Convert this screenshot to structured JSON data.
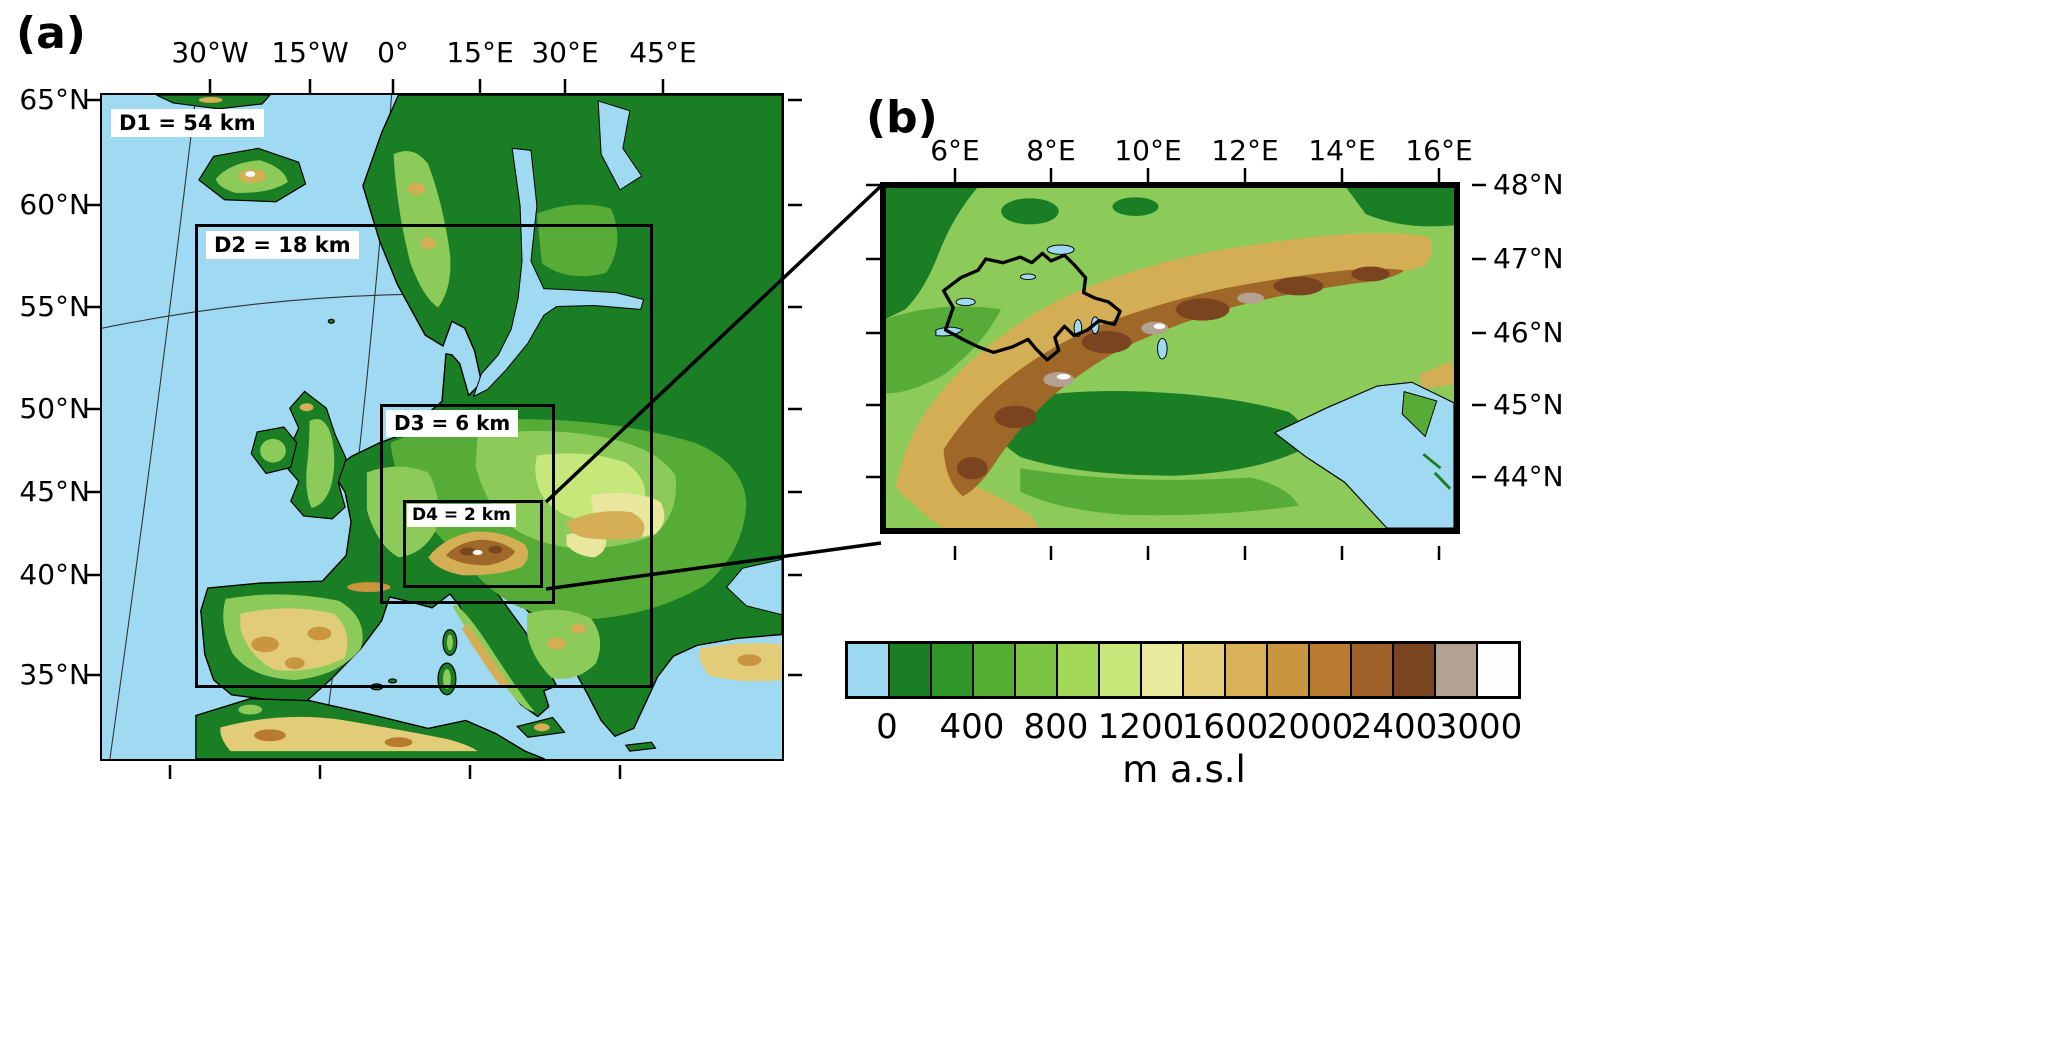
{
  "figure": {
    "panel_a_label": "(a)",
    "panel_b_label": "(b)"
  },
  "panel_a": {
    "top_axis_labels": [
      "30°W",
      "15°W",
      "0°",
      "15°E",
      "30°E",
      "45°E"
    ],
    "left_axis_labels": [
      "65°N",
      "60°N",
      "55°N",
      "50°N",
      "45°N",
      "40°N",
      "35°N"
    ],
    "domain_labels": {
      "d1": "D1 = 54 km",
      "d2": "D2 = 18 km",
      "d3": "D3 = 6 km",
      "d4": "D4 = 2 km"
    }
  },
  "panel_b": {
    "top_axis_labels": [
      "6°E",
      "8°E",
      "10°E",
      "12°E",
      "14°E",
      "16°E"
    ],
    "right_axis_labels": [
      "48°N",
      "47°N",
      "46°N",
      "45°N",
      "44°N"
    ]
  },
  "colorbar": {
    "tick_labels": [
      "0",
      "400",
      "800",
      "1200",
      "1600",
      "2000",
      "2400",
      "3000"
    ],
    "unit_label": "m a.s.l",
    "colors": [
      "#9CD9F0",
      "#1A7E24",
      "#2F9727",
      "#53AE32",
      "#7BC343",
      "#A3D858",
      "#C6E77A",
      "#EAEA9E",
      "#E5CF7D",
      "#D9B158",
      "#C9953F",
      "#B77A2F",
      "#9F5F28",
      "#7B4420",
      "#B3A291",
      "#FDFDFE"
    ]
  },
  "map_colors": {
    "ocean": "#9FD9F2",
    "land_dark_green": "#1A7E24",
    "land_mid_green": "#57AC38",
    "land_light_green": "#8CCB5A",
    "plain_pale_green": "#C6E77A",
    "plain_pale_yellow": "#E9E79E",
    "mountain_tan": "#D4AE55",
    "mountain_brown": "#A06828",
    "mountain_dark_brown": "#7B4420",
    "high_gray": "#B3A291",
    "snow_white": "#FDFDFE"
  }
}
